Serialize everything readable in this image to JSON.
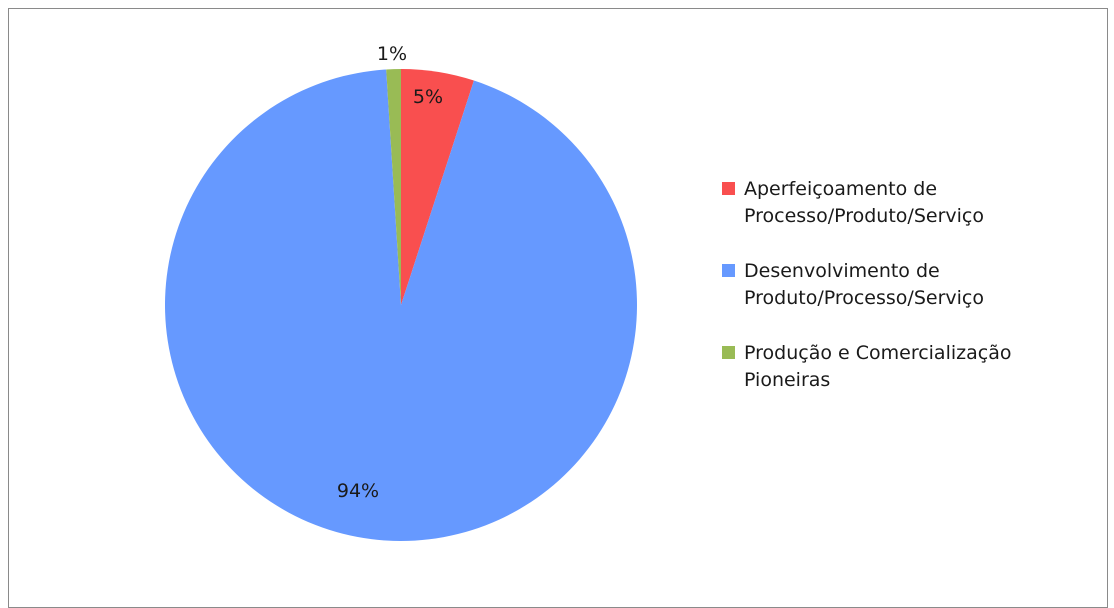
{
  "chart_data": {
    "type": "pie",
    "categories": [
      "Aperfeiçoamento de\nProcesso/Produto/Serviço",
      "Desenvolvimento de\nProduto/Processo/Serviço",
      "Produção e Comercialização\nPioneiras"
    ],
    "values": [
      5,
      94,
      1
    ],
    "value_labels": [
      "5%",
      "94%",
      "1%"
    ],
    "colors": [
      "#f94f4f",
      "#6699ff",
      "#99bb55"
    ],
    "start_angle_deg": 0,
    "direction": "clockwise",
    "legend_position": "right"
  }
}
